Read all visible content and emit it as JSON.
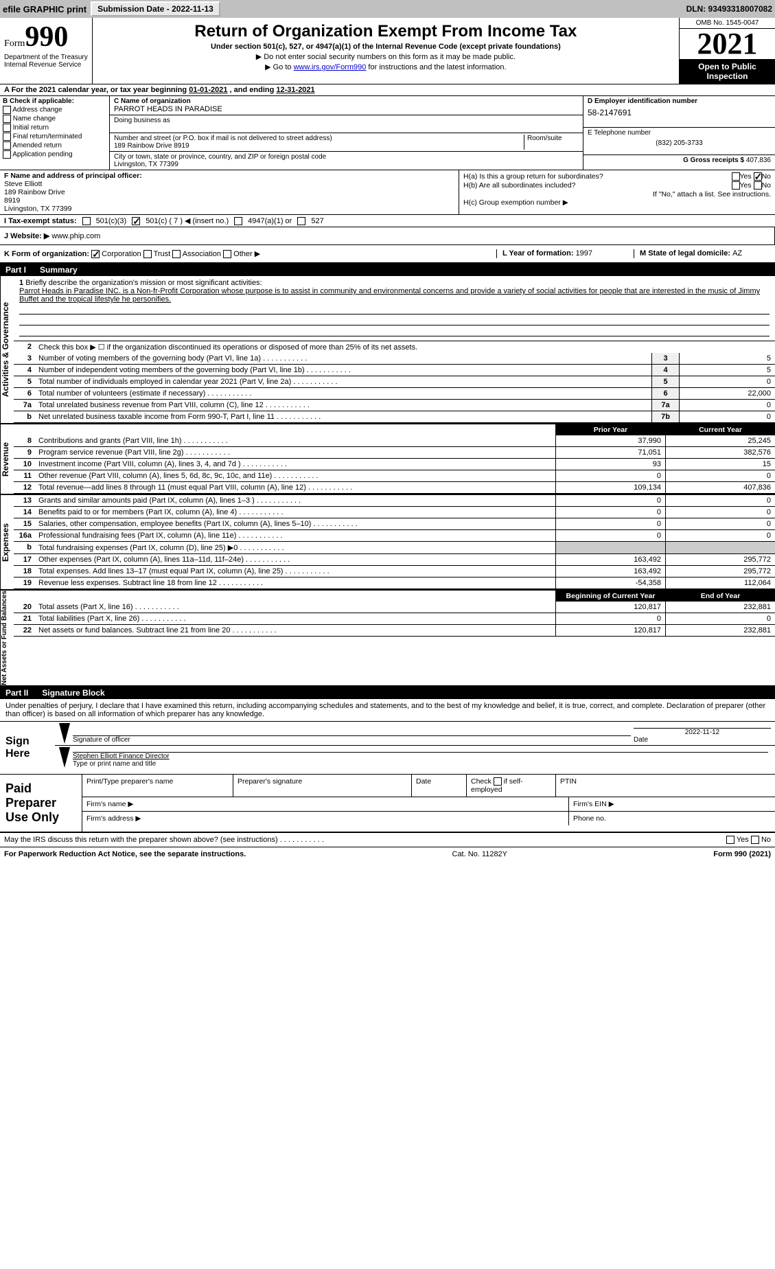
{
  "topbar": {
    "efile_label": "efile GRAPHIC print",
    "submission_btn": "Submission Date - 2022-11-13",
    "dln": "DLN: 93493318007082"
  },
  "header": {
    "form_word": "Form",
    "form_num": "990",
    "dept": "Department of the Treasury\nInternal Revenue Service",
    "title": "Return of Organization Exempt From Income Tax",
    "subtitle": "Under section 501(c), 527, or 4947(a)(1) of the Internal Revenue Code (except private foundations)",
    "note1": "▶ Do not enter social security numbers on this form as it may be made public.",
    "note2_pre": "▶ Go to ",
    "note2_link": "www.irs.gov/Form990",
    "note2_post": " for instructions and the latest information.",
    "omb": "OMB No. 1545-0047",
    "year": "2021",
    "open_public": "Open to Public Inspection"
  },
  "period": {
    "label_a": "A For the 2021 calendar year, or tax year beginning ",
    "begin": "01-01-2021",
    "mid": " , and ending ",
    "end": "12-31-2021"
  },
  "section_b": {
    "header": "B Check if applicable:",
    "opts": [
      "Address change",
      "Name change",
      "Initial return",
      "Final return/terminated",
      "Amended return",
      "Application pending"
    ]
  },
  "section_c": {
    "name_label": "C Name of organization",
    "org_name": "PARROT HEADS IN PARADISE",
    "dba_label": "Doing business as",
    "addr_label": "Number and street (or P.O. box if mail is not delivered to street address)",
    "room_label": "Room/suite",
    "addr": "189 Rainbow Drive 8919",
    "city_label": "City or town, state or province, country, and ZIP or foreign postal code",
    "city": "Livingston, TX  77399"
  },
  "section_d": {
    "label": "D Employer identification number",
    "ein": "58-2147691"
  },
  "section_e": {
    "label": "E Telephone number",
    "phone": "(832) 205-3733"
  },
  "section_g": {
    "label": "G Gross receipts $",
    "amount": "407,836"
  },
  "section_f": {
    "label": "F  Name and address of principal officer:",
    "name": "Steve Elliott",
    "addr1": "189 Rainbow Drive",
    "addr2": "8919",
    "addr3": "Livingston, TX  77399"
  },
  "section_h": {
    "ha_label": "H(a)  Is this a group return for subordinates?",
    "ha_yes": "Yes",
    "ha_no": "No",
    "hb_label": "H(b)  Are all subordinates included?",
    "hb_yes": "Yes",
    "hb_no": "No",
    "hb_note": "If \"No,\" attach a list. See instructions.",
    "hc_label": "H(c)  Group exemption number ▶"
  },
  "tax_status": {
    "i_label": "I    Tax-exempt status:",
    "opt1": "501(c)(3)",
    "opt2": "501(c) ( 7 ) ◀ (insert no.)",
    "opt3": "4947(a)(1) or",
    "opt4": "527"
  },
  "website": {
    "label": "J   Website: ▶",
    "url": "www.phip.com"
  },
  "row_k": {
    "k_label": "K Form of organization:",
    "corp": "Corporation",
    "trust": "Trust",
    "assoc": "Association",
    "other": "Other ▶",
    "l_label": "L Year of formation: ",
    "l_val": "1997",
    "m_label": "M State of legal domicile: ",
    "m_val": "AZ"
  },
  "part1": {
    "part": "Part I",
    "title": "Summary"
  },
  "mission": {
    "num": "1",
    "label": "Briefly describe the organization's mission or most significant activities:",
    "text": "Parrot Heads in Paradise INC. is a Non-fr-Profit Corporation whose purpose is to assist in community and environmental concerns and provide a variety of social activities for people that are interested in the music of Jimmy Buffet and the tropical lifestyle he personifies."
  },
  "side_labels": {
    "gov": "Activities & Governance",
    "rev": "Revenue",
    "exp": "Expenses",
    "net": "Net Assets or Fund Balances"
  },
  "lines_gov": [
    {
      "n": "2",
      "d": "Check this box ▶ ☐  if the organization discontinued its operations or disposed of more than 25% of its net assets.",
      "box": "",
      "v": ""
    },
    {
      "n": "3",
      "d": "Number of voting members of the governing body (Part VI, line 1a)",
      "box": "3",
      "v": "5"
    },
    {
      "n": "4",
      "d": "Number of independent voting members of the governing body (Part VI, line 1b)",
      "box": "4",
      "v": "5"
    },
    {
      "n": "5",
      "d": "Total number of individuals employed in calendar year 2021 (Part V, line 2a)",
      "box": "5",
      "v": "0"
    },
    {
      "n": "6",
      "d": "Total number of volunteers (estimate if necessary)",
      "box": "6",
      "v": "22,000"
    },
    {
      "n": "7a",
      "d": "Total unrelated business revenue from Part VIII, column (C), line 12",
      "box": "7a",
      "v": "0"
    },
    {
      "n": "b",
      "d": "Net unrelated business taxable income from Form 990-T, Part I, line 11",
      "box": "7b",
      "v": "0"
    }
  ],
  "col_headers": {
    "prior": "Prior Year",
    "current": "Current Year"
  },
  "lines_rev": [
    {
      "n": "8",
      "d": "Contributions and grants (Part VIII, line 1h)",
      "v1": "37,990",
      "v2": "25,245"
    },
    {
      "n": "9",
      "d": "Program service revenue (Part VIII, line 2g)",
      "v1": "71,051",
      "v2": "382,576"
    },
    {
      "n": "10",
      "d": "Investment income (Part VIII, column (A), lines 3, 4, and 7d )",
      "v1": "93",
      "v2": "15"
    },
    {
      "n": "11",
      "d": "Other revenue (Part VIII, column (A), lines 5, 6d, 8c, 9c, 10c, and 11e)",
      "v1": "0",
      "v2": "0"
    },
    {
      "n": "12",
      "d": "Total revenue—add lines 8 through 11 (must equal Part VIII, column (A), line 12)",
      "v1": "109,134",
      "v2": "407,836"
    }
  ],
  "lines_exp": [
    {
      "n": "13",
      "d": "Grants and similar amounts paid (Part IX, column (A), lines 1–3 )",
      "v1": "0",
      "v2": "0"
    },
    {
      "n": "14",
      "d": "Benefits paid to or for members (Part IX, column (A), line 4)",
      "v1": "0",
      "v2": "0"
    },
    {
      "n": "15",
      "d": "Salaries, other compensation, employee benefits (Part IX, column (A), lines 5–10)",
      "v1": "0",
      "v2": "0"
    },
    {
      "n": "16a",
      "d": "Professional fundraising fees (Part IX, column (A), line 11e)",
      "v1": "0",
      "v2": "0"
    },
    {
      "n": "b",
      "d": "Total fundraising expenses (Part IX, column (D), line 25) ▶0",
      "v1": "",
      "v2": ""
    },
    {
      "n": "17",
      "d": "Other expenses (Part IX, column (A), lines 11a–11d, 11f–24e)",
      "v1": "163,492",
      "v2": "295,772"
    },
    {
      "n": "18",
      "d": "Total expenses. Add lines 13–17 (must equal Part IX, column (A), line 25)",
      "v1": "163,492",
      "v2": "295,772"
    },
    {
      "n": "19",
      "d": "Revenue less expenses. Subtract line 18 from line 12",
      "v1": "-54,358",
      "v2": "112,064"
    }
  ],
  "net_headers": {
    "begin": "Beginning of Current Year",
    "end": "End of Year"
  },
  "lines_net": [
    {
      "n": "20",
      "d": "Total assets (Part X, line 16)",
      "v1": "120,817",
      "v2": "232,881"
    },
    {
      "n": "21",
      "d": "Total liabilities (Part X, line 26)",
      "v1": "0",
      "v2": "0"
    },
    {
      "n": "22",
      "d": "Net assets or fund balances. Subtract line 21 from line 20",
      "v1": "120,817",
      "v2": "232,881"
    }
  ],
  "part2": {
    "part": "Part II",
    "title": "Signature Block"
  },
  "sig": {
    "penalty": "Under penalties of perjury, I declare that I have examined this return, including accompanying schedules and statements, and to the best of my knowledge and belief, it is true, correct, and complete. Declaration of preparer (other than officer) is based on all information of which preparer has any knowledge.",
    "sign_here": "Sign Here",
    "sig_officer": "Signature of officer",
    "date": "2022-11-12",
    "date_label": "Date",
    "name": "Stephen Elliott Finance Director",
    "name_label": "Type or print name and title"
  },
  "prep": {
    "label": "Paid Preparer Use Only",
    "h1": "Print/Type preparer's name",
    "h2": "Preparer's signature",
    "h3": "Date",
    "h4_pre": "Check",
    "h4_post": "if self-employed",
    "h5": "PTIN",
    "firm_name": "Firm's name   ▶",
    "firm_ein": "Firm's EIN ▶",
    "firm_addr": "Firm's address ▶",
    "phone": "Phone no."
  },
  "discuss": {
    "text": "May the IRS discuss this return with the preparer shown above? (see instructions)",
    "yes": "Yes",
    "no": "No"
  },
  "footer": {
    "left": "For Paperwork Reduction Act Notice, see the separate instructions.",
    "mid": "Cat. No. 11282Y",
    "right": "Form 990 (2021)"
  }
}
